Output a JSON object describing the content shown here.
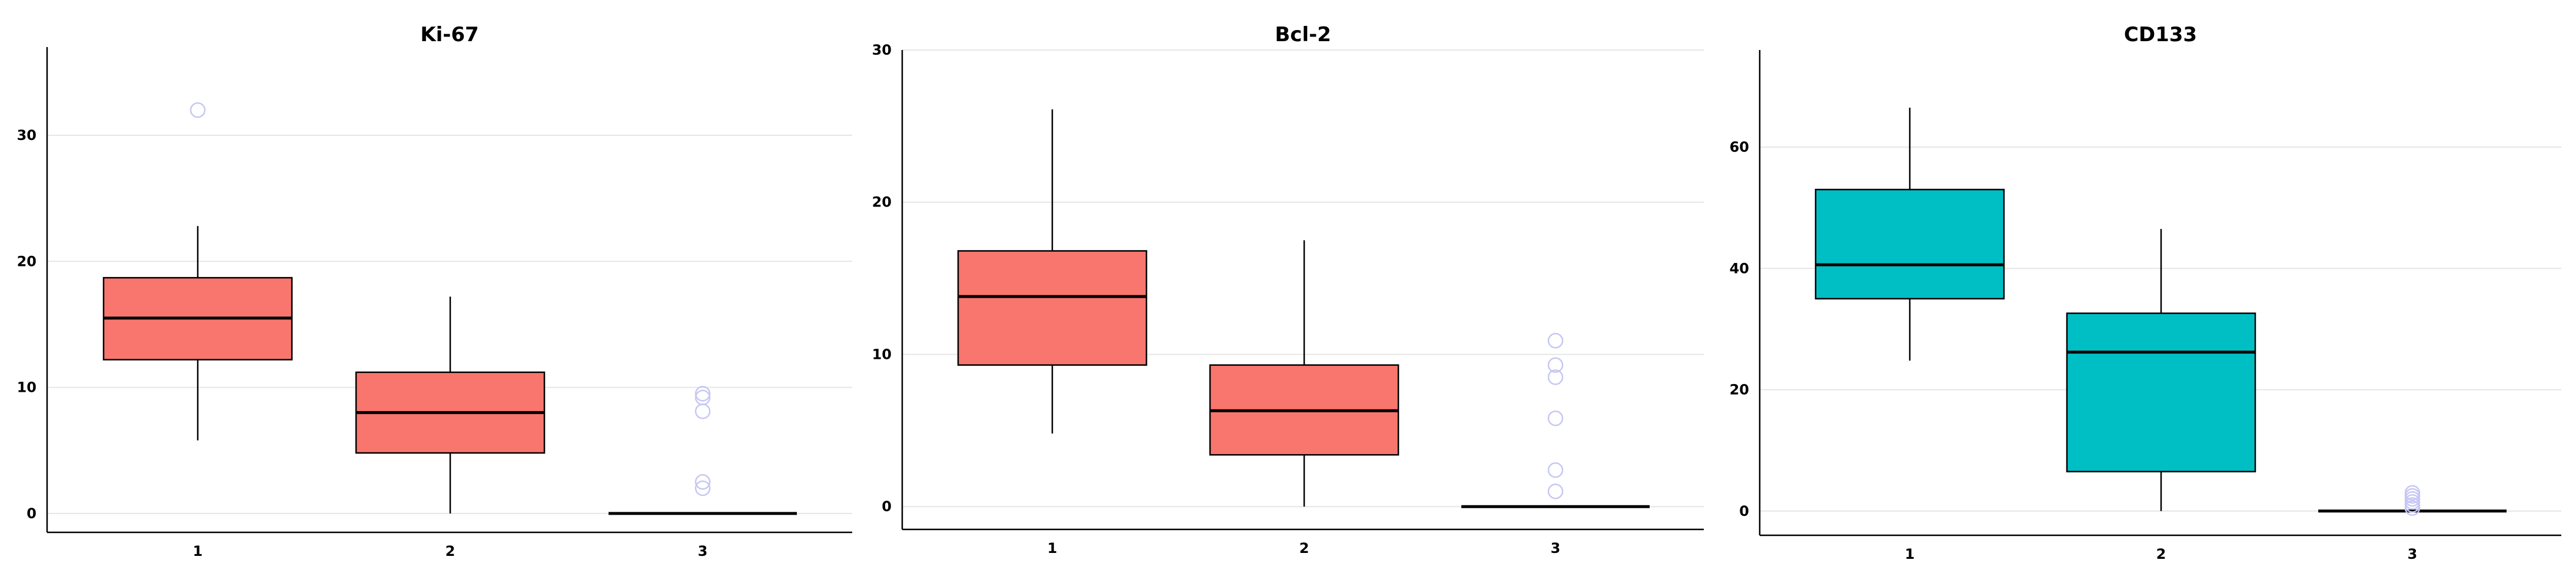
{
  "chart_data": [
    {
      "type": "box",
      "title": "Ki-67",
      "categories": [
        "1",
        "2",
        "3"
      ],
      "yticks": [
        "0",
        "10",
        "20",
        "30"
      ],
      "ylim": [
        -1.5,
        37
      ],
      "color": "#f8766d",
      "boxes": [
        {
          "whisker_low": 5.8,
          "q1": 12.2,
          "median": 15.5,
          "q3": 18.7,
          "whisker_high": 22.8,
          "outliers": [
            32.0
          ]
        },
        {
          "whisker_low": 0.0,
          "q1": 4.8,
          "median": 8.0,
          "q3": 11.2,
          "whisker_high": 17.2,
          "outliers": []
        },
        {
          "whisker_low": 0.0,
          "q1": 0.0,
          "median": 0.0,
          "q3": 0.0,
          "whisker_high": 0.0,
          "outliers": [
            2.0,
            2.5,
            8.1,
            9.2,
            9.5
          ]
        }
      ]
    },
    {
      "type": "box",
      "title": "Bcl-2",
      "categories": [
        "1",
        "2",
        "3"
      ],
      "yticks": [
        "0",
        "10",
        "20",
        "30"
      ],
      "ylim": [
        -1.5,
        30
      ],
      "color": "#f8766d",
      "boxes": [
        {
          "whisker_low": 4.8,
          "q1": 9.3,
          "median": 13.8,
          "q3": 16.8,
          "whisker_high": 26.1,
          "outliers": []
        },
        {
          "whisker_low": 0.0,
          "q1": 3.4,
          "median": 6.3,
          "q3": 9.3,
          "whisker_high": 17.5,
          "outliers": []
        },
        {
          "whisker_low": 0.0,
          "q1": 0.0,
          "median": 0.0,
          "q3": 0.0,
          "whisker_high": 0.0,
          "outliers": [
            1.0,
            2.4,
            5.8,
            8.5,
            9.3,
            10.9
          ]
        }
      ]
    },
    {
      "type": "box",
      "title": "CD133",
      "categories": [
        "1",
        "2",
        "3"
      ],
      "yticks": [
        "0",
        "20",
        "40",
        "60"
      ],
      "ylim": [
        -4,
        76
      ],
      "color": "#00bfc4",
      "boxes": [
        {
          "whisker_low": 24.8,
          "q1": 35.0,
          "median": 40.6,
          "q3": 53.0,
          "whisker_high": 66.5,
          "outliers": []
        },
        {
          "whisker_low": 0.0,
          "q1": 6.5,
          "median": 26.2,
          "q3": 32.6,
          "whisker_high": 46.5,
          "outliers": []
        },
        {
          "whisker_low": 0.0,
          "q1": 0.0,
          "median": 0.0,
          "q3": 0.0,
          "whisker_high": 0.0,
          "outliers": [
            0.5,
            1.0,
            1.5,
            2.0,
            2.5,
            3.0
          ]
        }
      ]
    }
  ]
}
